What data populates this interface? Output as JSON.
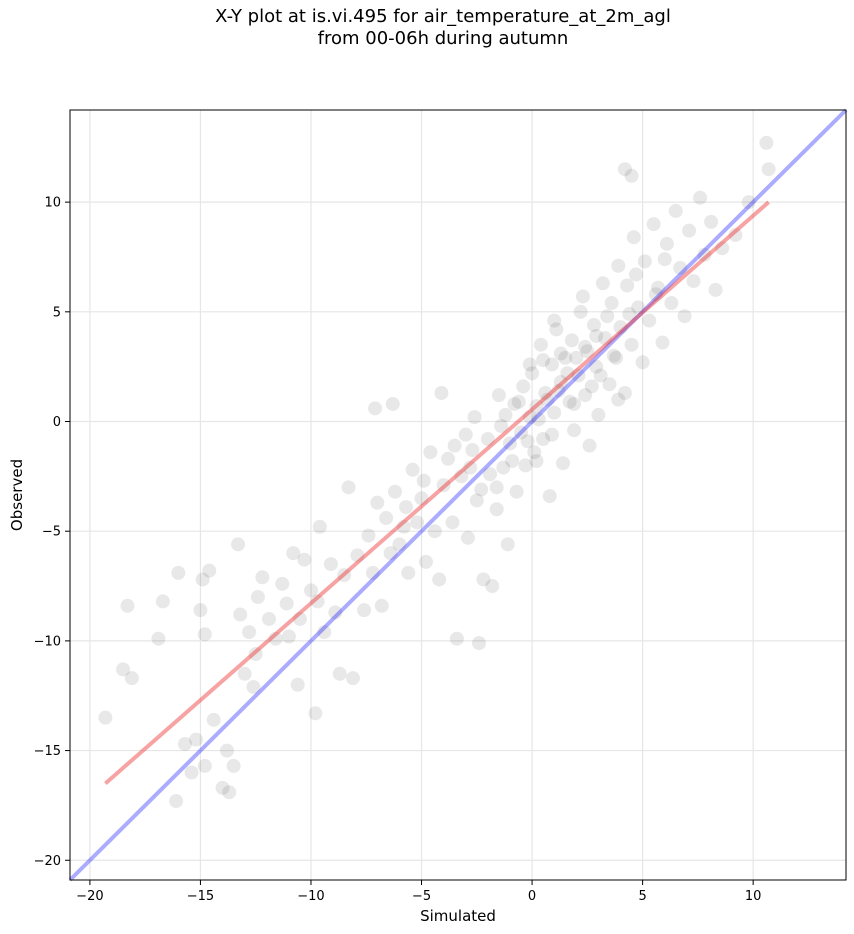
{
  "chart_data": {
    "type": "scatter",
    "title_line1": "X-Y plot at is.vi.495 for air_temperature_at_2m_agl",
    "title_line2": "from 00-06h during autumn",
    "xlabel": "Simulated",
    "ylabel": "Observed",
    "xlim": [
      -20.9,
      14.2
    ],
    "ylim": [
      -20.9,
      14.2
    ],
    "xticks": [
      -20,
      -15,
      -10,
      -5,
      0,
      5,
      10
    ],
    "yticks": [
      -20,
      -15,
      -10,
      -5,
      0,
      5,
      10
    ],
    "grid": true,
    "colors": {
      "points": "#000000",
      "one_to_one_line": "#0000ff",
      "fit_line": "#ee3333"
    },
    "one_to_one_line": [
      [
        -20.9,
        -20.9
      ],
      [
        14.2,
        14.2
      ]
    ],
    "fit_line": [
      [
        -19.3,
        -16.5
      ],
      [
        10.7,
        10.0
      ]
    ],
    "point_alpha": 0.09,
    "points": [
      [
        -19.3,
        -13.5
      ],
      [
        -18.5,
        -11.3
      ],
      [
        -18.3,
        -8.4
      ],
      [
        -18.1,
        -11.7
      ],
      [
        -16.9,
        -9.9
      ],
      [
        -16.7,
        -8.2
      ],
      [
        -16.1,
        -17.3
      ],
      [
        -16.0,
        -6.9
      ],
      [
        -15.7,
        -14.7
      ],
      [
        -15.4,
        -16.0
      ],
      [
        -15.2,
        -14.5
      ],
      [
        -15.0,
        -8.6
      ],
      [
        -14.9,
        -7.2
      ],
      [
        -14.8,
        -9.7
      ],
      [
        -14.8,
        -15.7
      ],
      [
        -14.6,
        -6.8
      ],
      [
        -14.4,
        -13.6
      ],
      [
        -14.0,
        -16.7
      ],
      [
        -13.8,
        -15.0
      ],
      [
        -13.7,
        -16.9
      ],
      [
        -13.5,
        -15.7
      ],
      [
        -13.3,
        -5.6
      ],
      [
        -13.2,
        -8.8
      ],
      [
        -13.0,
        -11.5
      ],
      [
        -12.8,
        -9.6
      ],
      [
        -12.6,
        -12.1
      ],
      [
        -12.5,
        -10.6
      ],
      [
        -12.4,
        -8.0
      ],
      [
        -12.2,
        -7.1
      ],
      [
        -11.9,
        -9.0
      ],
      [
        -11.6,
        -9.9
      ],
      [
        -11.3,
        -7.4
      ],
      [
        -11.1,
        -8.3
      ],
      [
        -11.0,
        -9.8
      ],
      [
        -10.8,
        -6.0
      ],
      [
        -10.6,
        -12.0
      ],
      [
        -10.5,
        -9.0
      ],
      [
        -10.3,
        -6.3
      ],
      [
        -10.0,
        -7.7
      ],
      [
        -9.8,
        -13.3
      ],
      [
        -9.7,
        -8.2
      ],
      [
        -9.6,
        -4.8
      ],
      [
        -9.4,
        -9.6
      ],
      [
        -9.1,
        -6.5
      ],
      [
        -8.9,
        -8.7
      ],
      [
        -8.7,
        -11.5
      ],
      [
        -8.5,
        -7.0
      ],
      [
        -8.3,
        -3.0
      ],
      [
        -8.1,
        -11.7
      ],
      [
        -7.9,
        -6.1
      ],
      [
        -7.6,
        -8.6
      ],
      [
        -7.4,
        -5.2
      ],
      [
        -7.2,
        -6.9
      ],
      [
        -7.0,
        -3.7
      ],
      [
        -6.8,
        -8.4
      ],
      [
        -6.6,
        -4.4
      ],
      [
        -6.4,
        -6.0
      ],
      [
        -6.2,
        -3.2
      ],
      [
        -6.0,
        -5.6
      ],
      [
        -5.8,
        -4.8
      ],
      [
        -5.6,
        -6.9
      ],
      [
        -5.4,
        -2.2
      ],
      [
        -5.2,
        -4.6
      ],
      [
        -5.0,
        -3.5
      ],
      [
        -4.8,
        -6.4
      ],
      [
        -4.6,
        -1.4
      ],
      [
        -4.4,
        -5.0
      ],
      [
        -4.2,
        -7.2
      ],
      [
        -4.0,
        -2.9
      ],
      [
        -3.8,
        -1.7
      ],
      [
        -3.6,
        -4.6
      ],
      [
        -3.4,
        -9.9
      ],
      [
        -3.2,
        -2.5
      ],
      [
        -3.0,
        -0.6
      ],
      [
        -2.9,
        -5.3
      ],
      [
        -2.7,
        -1.3
      ],
      [
        -2.5,
        -3.6
      ],
      [
        -2.4,
        -10.1
      ],
      [
        -2.2,
        -7.2
      ],
      [
        -2.0,
        -0.8
      ],
      [
        -1.9,
        -2.4
      ],
      [
        -1.8,
        -7.5
      ],
      [
        -1.6,
        -4.0
      ],
      [
        -1.4,
        -0.2
      ],
      [
        -1.3,
        -2.1
      ],
      [
        -1.1,
        -5.6
      ],
      [
        -1.0,
        -1.0
      ],
      [
        -0.8,
        0.8
      ],
      [
        -0.7,
        -3.2
      ],
      [
        -0.5,
        -0.5
      ],
      [
        -0.4,
        1.6
      ],
      [
        -0.3,
        -2.0
      ],
      [
        -0.1,
        0.2
      ],
      [
        0.0,
        2.2
      ],
      [
        0.1,
        -1.4
      ],
      [
        0.2,
        0.7
      ],
      [
        0.4,
        3.5
      ],
      [
        0.5,
        -0.8
      ],
      [
        0.6,
        1.3
      ],
      [
        0.8,
        -3.4
      ],
      [
        0.9,
        2.6
      ],
      [
        1.0,
        0.4
      ],
      [
        1.1,
        4.2
      ],
      [
        1.3,
        1.8
      ],
      [
        1.4,
        -1.9
      ],
      [
        1.5,
        2.9
      ],
      [
        1.7,
        0.9
      ],
      [
        1.8,
        3.7
      ],
      [
        1.9,
        -0.4
      ],
      [
        2.1,
        2.1
      ],
      [
        2.2,
        5.0
      ],
      [
        2.4,
        1.2
      ],
      [
        2.5,
        3.2
      ],
      [
        2.6,
        -1.1
      ],
      [
        2.8,
        4.4
      ],
      [
        2.9,
        2.5
      ],
      [
        3.0,
        0.3
      ],
      [
        3.2,
        6.3
      ],
      [
        3.3,
        3.8
      ],
      [
        3.5,
        1.7
      ],
      [
        3.6,
        5.4
      ],
      [
        3.8,
        2.9
      ],
      [
        3.9,
        7.1
      ],
      [
        4.0,
        4.3
      ],
      [
        4.2,
        1.3
      ],
      [
        4.3,
        6.2
      ],
      [
        4.5,
        3.5
      ],
      [
        4.6,
        8.4
      ],
      [
        4.8,
        5.2
      ],
      [
        5.0,
        2.7
      ],
      [
        5.1,
        7.3
      ],
      [
        5.3,
        4.6
      ],
      [
        5.5,
        9.0
      ],
      [
        5.7,
        6.1
      ],
      [
        5.9,
        3.6
      ],
      [
        6.1,
        8.1
      ],
      [
        6.3,
        5.4
      ],
      [
        6.5,
        9.6
      ],
      [
        6.7,
        7.0
      ],
      [
        6.9,
        4.8
      ],
      [
        7.1,
        8.7
      ],
      [
        7.3,
        6.4
      ],
      [
        7.6,
        10.2
      ],
      [
        7.8,
        7.6
      ],
      [
        8.1,
        9.1
      ],
      [
        8.3,
        6.0
      ],
      [
        8.6,
        7.9
      ],
      [
        9.2,
        8.5
      ],
      [
        9.8,
        10.0
      ],
      [
        10.6,
        12.7
      ],
      [
        10.7,
        11.5
      ],
      [
        -1.6,
        -3.0
      ],
      [
        -0.9,
        -1.8
      ],
      [
        -0.2,
        -0.9
      ],
      [
        0.3,
        0.1
      ],
      [
        0.7,
        1.0
      ],
      [
        1.2,
        1.4
      ],
      [
        1.6,
        2.2
      ],
      [
        2.0,
        2.9
      ],
      [
        2.4,
        3.4
      ],
      [
        2.9,
        3.9
      ],
      [
        3.4,
        4.8
      ],
      [
        -2.8,
        -2.1
      ],
      [
        -2.3,
        -3.1
      ],
      [
        -1.2,
        0.3
      ],
      [
        0.9,
        -0.6
      ],
      [
        1.9,
        0.8
      ],
      [
        2.7,
        1.6
      ],
      [
        -0.6,
        0.9
      ],
      [
        0.5,
        2.8
      ],
      [
        1.3,
        3.1
      ],
      [
        3.1,
        2.1
      ],
      [
        3.7,
        3.0
      ],
      [
        4.4,
        4.9
      ],
      [
        -3.5,
        -1.1
      ],
      [
        -2.6,
        0.2
      ],
      [
        -4.9,
        -2.7
      ],
      [
        -5.7,
        -3.9
      ],
      [
        4.7,
        6.7
      ],
      [
        5.6,
        5.8
      ],
      [
        6.0,
        7.4
      ],
      [
        -0.1,
        2.6
      ],
      [
        0.2,
        -1.8
      ],
      [
        1.0,
        4.6
      ],
      [
        2.3,
        5.7
      ],
      [
        -1.5,
        1.2
      ],
      [
        3.9,
        1.0
      ],
      [
        4.2,
        11.5
      ],
      [
        4.5,
        11.2
      ],
      [
        -7.1,
        0.6
      ],
      [
        -6.3,
        0.8
      ],
      [
        -4.1,
        1.3
      ]
    ]
  }
}
